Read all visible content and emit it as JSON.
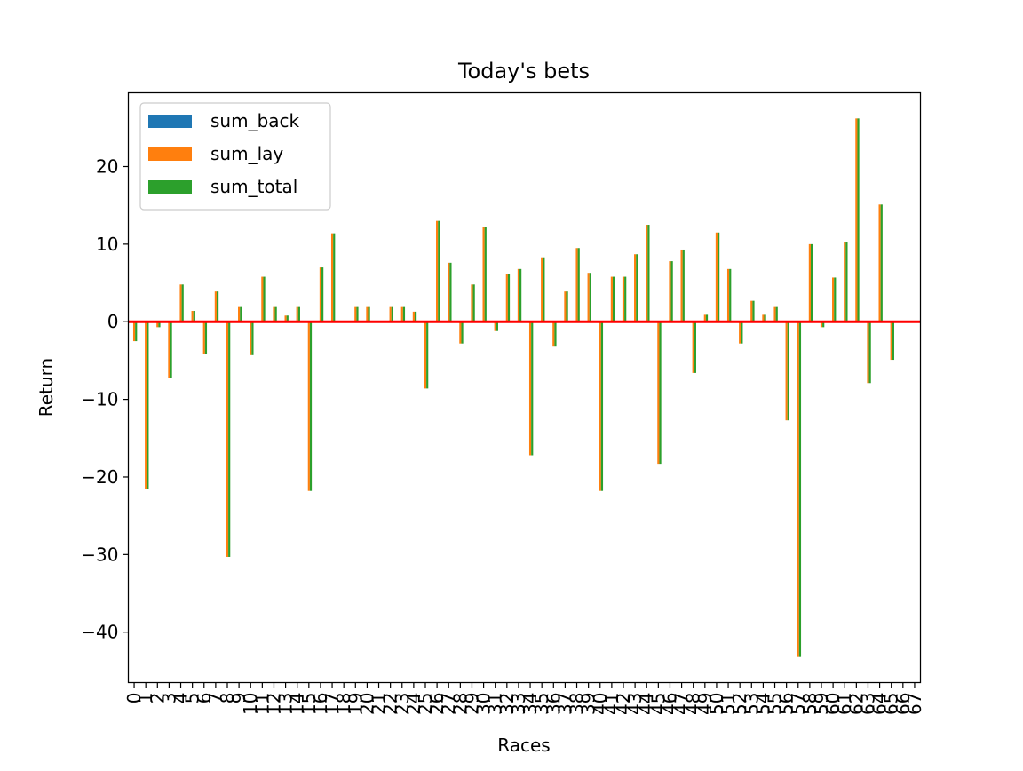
{
  "chart_data": {
    "type": "bar",
    "title": "Today's bets",
    "xlabel": "Races",
    "ylabel": "Return",
    "ylim": [
      -46.5,
      29.5
    ],
    "yticks": [
      20,
      10,
      0,
      -10,
      -20,
      -30,
      -40
    ],
    "ytick_labels": [
      "20",
      "10",
      "0",
      "−10",
      "−20",
      "−30",
      "−40"
    ],
    "grid": false,
    "legend_position": "top-left",
    "zero_line_color": "#ff0000",
    "categories": [
      "0",
      "1",
      "2",
      "3",
      "4",
      "5",
      "6",
      "7",
      "8",
      "9",
      "10",
      "11",
      "12",
      "13",
      "14",
      "15",
      "16",
      "17",
      "18",
      "19",
      "20",
      "21",
      "22",
      "23",
      "24",
      "25",
      "26",
      "27",
      "28",
      "29",
      "30",
      "31",
      "32",
      "33",
      "34",
      "35",
      "36",
      "37",
      "38",
      "39",
      "40",
      "41",
      "42",
      "43",
      "44",
      "45",
      "46",
      "47",
      "48",
      "49",
      "50",
      "51",
      "52",
      "53",
      "54",
      "55",
      "56",
      "57",
      "58",
      "59",
      "60",
      "61",
      "62",
      "63",
      "64",
      "65",
      "66",
      "67"
    ],
    "series": [
      {
        "name": "sum_back",
        "color": "#1f77b4",
        "values": [
          0,
          0,
          0,
          0,
          0,
          0,
          0,
          0,
          0,
          0,
          0,
          0,
          0,
          0,
          0,
          0,
          0,
          0,
          0,
          0,
          0,
          0,
          0,
          0,
          0,
          0,
          0,
          0,
          0,
          0,
          0,
          0,
          0,
          0,
          0,
          0,
          0,
          0,
          0,
          0,
          0,
          0,
          0,
          0,
          0,
          0,
          0,
          0,
          0,
          0,
          0,
          0,
          0,
          0,
          0,
          0,
          0,
          0,
          0,
          0,
          0,
          0,
          0,
          0,
          0,
          0,
          0,
          0
        ]
      },
      {
        "name": "sum_lay",
        "color": "#ff7f0e",
        "values": [
          -2.5,
          -21.5,
          -0.7,
          -7.2,
          4.8,
          1.4,
          -4.2,
          3.9,
          -30.3,
          1.9,
          -4.3,
          5.8,
          1.9,
          0.8,
          1.9,
          -21.8,
          7.0,
          11.4,
          0,
          1.9,
          1.9,
          0,
          1.9,
          1.9,
          1.3,
          -8.6,
          13.0,
          7.6,
          -2.8,
          4.8,
          12.2,
          -1.2,
          6.1,
          6.8,
          -17.2,
          8.3,
          -3.2,
          3.9,
          9.5,
          6.3,
          -21.8,
          5.8,
          5.8,
          8.7,
          12.5,
          -18.3,
          7.8,
          9.3,
          -6.6,
          0.9,
          11.5,
          6.8,
          -2.8,
          2.7,
          0.9,
          1.9,
          -12.7,
          -43.2,
          10.0,
          -0.7,
          5.7,
          10.3,
          26.2,
          -7.9,
          15.1,
          -4.9,
          0,
          0
        ]
      },
      {
        "name": "sum_total",
        "color": "#2ca02c",
        "values": [
          -2.5,
          -21.5,
          -0.7,
          -7.2,
          4.8,
          1.4,
          -4.2,
          3.9,
          -30.3,
          1.9,
          -4.3,
          5.8,
          1.9,
          0.8,
          1.9,
          -21.8,
          7.0,
          11.4,
          0,
          1.9,
          1.9,
          0,
          1.9,
          1.9,
          1.3,
          -8.6,
          13.0,
          7.6,
          -2.8,
          4.8,
          12.2,
          -1.2,
          6.1,
          6.8,
          -17.2,
          8.3,
          -3.2,
          3.9,
          9.5,
          6.3,
          -21.8,
          5.8,
          5.8,
          8.7,
          12.5,
          -18.3,
          7.8,
          9.3,
          -6.6,
          0.9,
          11.5,
          6.8,
          -2.8,
          2.7,
          0.9,
          1.9,
          -12.7,
          -43.2,
          10.0,
          -0.7,
          5.7,
          10.3,
          26.2,
          -7.9,
          15.1,
          -4.9,
          0,
          0
        ]
      }
    ]
  }
}
